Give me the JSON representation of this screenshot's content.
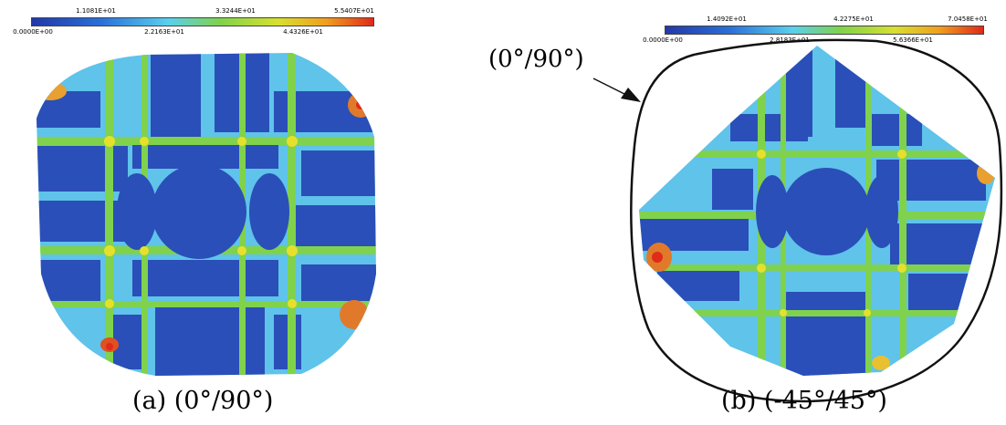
{
  "colors": {
    "contour_low": "#2a52b8",
    "contour_mid_low": "#59c8ee",
    "contour_mid": "#7ed04a",
    "contour_mid_high": "#e2dd2c",
    "contour_high": "#e03020"
  },
  "panel_a": {
    "caption": "(a) (0°/90°)",
    "ticks_top": [
      "1.1081E+01",
      "3.3244E+01",
      "5.5407E+01"
    ],
    "ticks_bottom": [
      "0.0000E+00",
      "2.2163E+01",
      "4.4326E+01"
    ]
  },
  "panel_b": {
    "caption": "(b) (-45°/45°)",
    "callout": "(0°/90°)",
    "ticks_top": [
      "1.4092E+01",
      "4.2275E+01",
      "7.0458E+01"
    ],
    "ticks_bottom": [
      "0.0000E+00",
      "2.8183E+01",
      "5.6366E+01"
    ]
  }
}
